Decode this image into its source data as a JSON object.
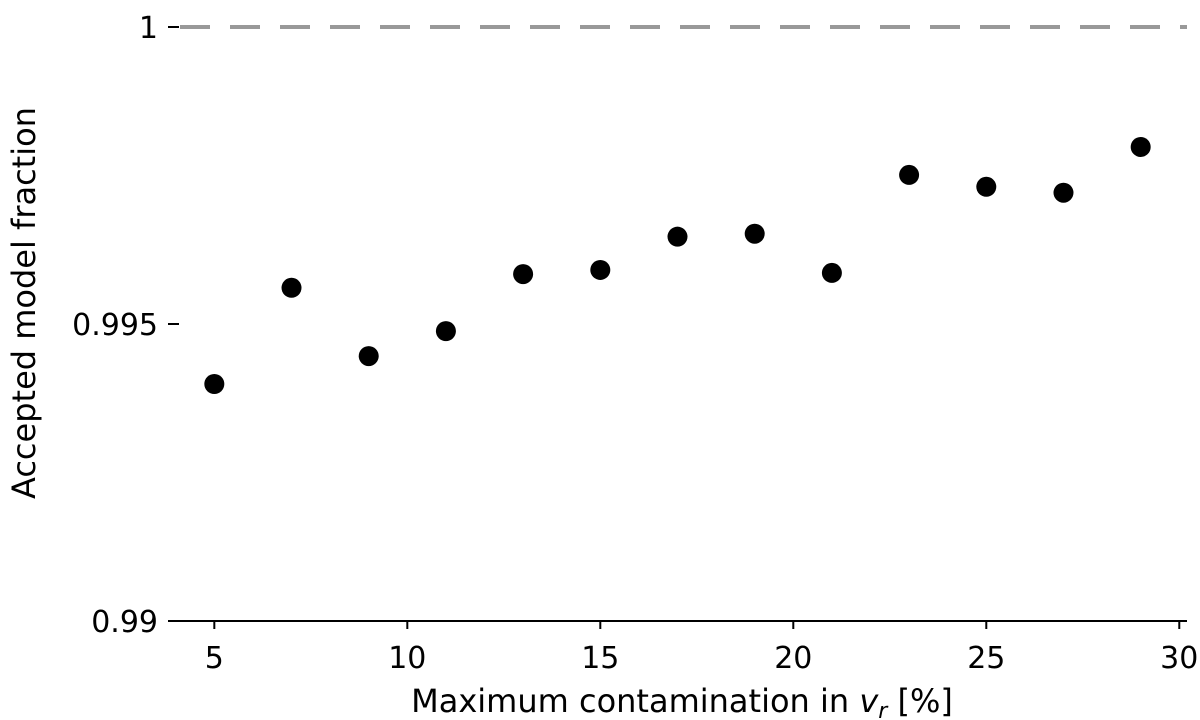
{
  "chart_data": {
    "type": "scatter",
    "xlabel_main": "Maximum contamination in ",
    "xlabel_var": "v",
    "xlabel_sub": "r",
    "xlabel_unit": " [%]",
    "ylabel": "Accepted model fraction",
    "xlim": [
      3.8,
      30.2
    ],
    "ylim": [
      0.99,
      1.0
    ],
    "xticks": [
      5,
      10,
      15,
      20,
      25,
      30
    ],
    "xtick_labels": [
      "5",
      "10",
      "15",
      "20",
      "25",
      "30"
    ],
    "yticks": [
      0.99,
      0.995,
      1.0
    ],
    "ytick_labels": [
      "0.99",
      "0.995",
      "1"
    ],
    "reference_line": {
      "y": 1.0,
      "style": "dashed",
      "color": "#999999"
    },
    "marker_color": "#000000",
    "grid": false,
    "series": [
      {
        "x": [
          5,
          7,
          9,
          11,
          13,
          15,
          17,
          19,
          21,
          23,
          25,
          27,
          29
        ],
        "y": [
          0.99399,
          0.99561,
          0.99446,
          0.99488,
          0.99584,
          0.99591,
          0.99647,
          0.99652,
          0.99586,
          0.99751,
          0.99731,
          0.99721,
          0.99798
        ]
      }
    ]
  }
}
